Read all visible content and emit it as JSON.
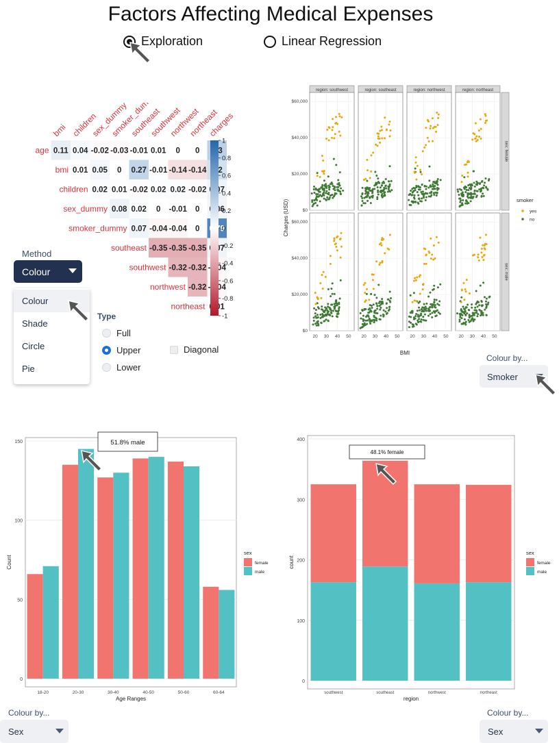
{
  "title": "Factors Affecting Medical Expenses",
  "mode_radio": {
    "options": [
      "Exploration",
      "Linear Regression"
    ],
    "selected": "Exploration"
  },
  "corr_panel": {
    "method_label": "Method",
    "method_value": "Colour",
    "method_options": [
      "Colour",
      "Shade",
      "Circle",
      "Pie"
    ],
    "type_label": "Type",
    "type_options": [
      "Full",
      "Upper",
      "Lower"
    ],
    "type_selected": "Upper",
    "diagonal_label": "Diagonal",
    "colors": {
      "negative": "#b2182b",
      "neutral": "#ffffff",
      "positive": "#2166ac",
      "label": "#e0313b"
    }
  },
  "colour_by_label": "Colour by...",
  "scatter_colour_by": "Smoker",
  "hist_colour_by": "Sex",
  "region_colour_by": "Sex",
  "chart_data": [
    {
      "type": "heatmap",
      "variables": [
        "age",
        "bmi",
        "children",
        "sex_dummy",
        "smoker_dummy",
        "southeast",
        "southwest",
        "northwest",
        "northeast",
        "charges"
      ],
      "cells": [
        [
          "age",
          "bmi",
          0.11
        ],
        [
          "age",
          "children",
          0.04
        ],
        [
          "age",
          "sex_dummy",
          -0.02
        ],
        [
          "age",
          "smoker_dummy",
          -0.03
        ],
        [
          "age",
          "southeast",
          -0.01
        ],
        [
          "age",
          "southwest",
          0.01
        ],
        [
          "age",
          "northwest",
          0
        ],
        [
          "age",
          "northeast",
          0
        ],
        [
          "age",
          "charges",
          0.3
        ],
        [
          "bmi",
          "children",
          0.01
        ],
        [
          "bmi",
          "sex_dummy",
          0.05
        ],
        [
          "bmi",
          "smoker_dummy",
          0
        ],
        [
          "bmi",
          "southeast",
          0.27
        ],
        [
          "bmi",
          "southwest",
          -0.01
        ],
        [
          "bmi",
          "northwest",
          -0.14
        ],
        [
          "bmi",
          "northeast",
          -0.14
        ],
        [
          "bmi",
          "charges",
          0.2
        ],
        [
          "children",
          "sex_dummy",
          0.02
        ],
        [
          "children",
          "smoker_dummy",
          0.01
        ],
        [
          "children",
          "southeast",
          -0.02
        ],
        [
          "children",
          "southwest",
          0.02
        ],
        [
          "children",
          "northwest",
          0.02
        ],
        [
          "children",
          "northeast",
          -0.02
        ],
        [
          "children",
          "charges",
          0.07
        ],
        [
          "sex_dummy",
          "smoker_dummy",
          0.08
        ],
        [
          "sex_dummy",
          "southeast",
          0.02
        ],
        [
          "sex_dummy",
          "southwest",
          0
        ],
        [
          "sex_dummy",
          "northwest",
          -0.01
        ],
        [
          "sex_dummy",
          "northeast",
          0
        ],
        [
          "sex_dummy",
          "charges",
          0.06
        ],
        [
          "smoker_dummy",
          "southeast",
          0.07
        ],
        [
          "smoker_dummy",
          "southwest",
          -0.04
        ],
        [
          "smoker_dummy",
          "northwest",
          -0.04
        ],
        [
          "smoker_dummy",
          "northeast",
          0
        ],
        [
          "smoker_dummy",
          "charges",
          0.79
        ],
        [
          "southeast",
          "southwest",
          -0.35
        ],
        [
          "southeast",
          "northwest",
          -0.35
        ],
        [
          "southeast",
          "northeast",
          -0.35
        ],
        [
          "southeast",
          "charges",
          0.07
        ],
        [
          "southwest",
          "northwest",
          -0.32
        ],
        [
          "southwest",
          "northeast",
          -0.32
        ],
        [
          "southwest",
          "charges",
          -0.04
        ],
        [
          "northwest",
          "northeast",
          -0.32
        ],
        [
          "northwest",
          "charges",
          -0.04
        ],
        [
          "northeast",
          "charges",
          0.01
        ]
      ],
      "colorbar_ticks": [
        "1",
        "0.8",
        "0.6",
        "0.4",
        "0.2",
        "0",
        "-0.2",
        "-0.4",
        "-0.6",
        "-0.8",
        "-1"
      ]
    },
    {
      "type": "scatter",
      "facet_cols": [
        "region: southwest",
        "region: southeast",
        "region: northwest",
        "region: northeast"
      ],
      "facet_rows": [
        "sex: female",
        "sex: male"
      ],
      "xlabel": "BMI",
      "ylabel": "Charges (USD)",
      "x_ticks": [
        "20",
        "30",
        "40",
        "50"
      ],
      "y_ticks": [
        "$0",
        "$20,000",
        "$40,000",
        "$60,000"
      ],
      "xlim": [
        15,
        55
      ],
      "ylim": [
        0,
        65000
      ],
      "legend": {
        "title": "smoker",
        "entries": [
          {
            "name": "yes",
            "color": "#e8a80c"
          },
          {
            "name": "no",
            "color": "#3f7a35"
          }
        ]
      }
    },
    {
      "type": "bar",
      "categories": [
        "18-20",
        "20-30",
        "30-40",
        "40-50",
        "50-60",
        "60-64"
      ],
      "series": [
        {
          "name": "female",
          "color": "#f1746e",
          "values": [
            66,
            135,
            127,
            139,
            137,
            58
          ]
        },
        {
          "name": "male",
          "color": "#53c0c4",
          "values": [
            71,
            145,
            130,
            140,
            134,
            56
          ]
        }
      ],
      "xlabel": "Age Ranges",
      "ylabel": "Count",
      "y_ticks": [
        "0",
        "50",
        "100",
        "150"
      ],
      "ylim": [
        0,
        150
      ],
      "legend_title": "sex",
      "tooltip": "51.8% male"
    },
    {
      "type": "bar",
      "stacked": true,
      "categories": [
        "southwest",
        "southeast",
        "northwest",
        "northeast"
      ],
      "series": [
        {
          "name": "male",
          "color": "#53c0c4",
          "values": [
            163,
            189,
            161,
            163
          ]
        },
        {
          "name": "female",
          "color": "#f1746e",
          "values": [
            162,
            175,
            164,
            161
          ]
        }
      ],
      "xlabel": "region",
      "ylabel": "count",
      "y_ticks": [
        "0",
        "100",
        "200",
        "300",
        "400"
      ],
      "ylim": [
        0,
        400
      ],
      "legend_title": "sex",
      "legend_order": [
        "female",
        "male"
      ],
      "tooltip": "48.1% female"
    }
  ]
}
